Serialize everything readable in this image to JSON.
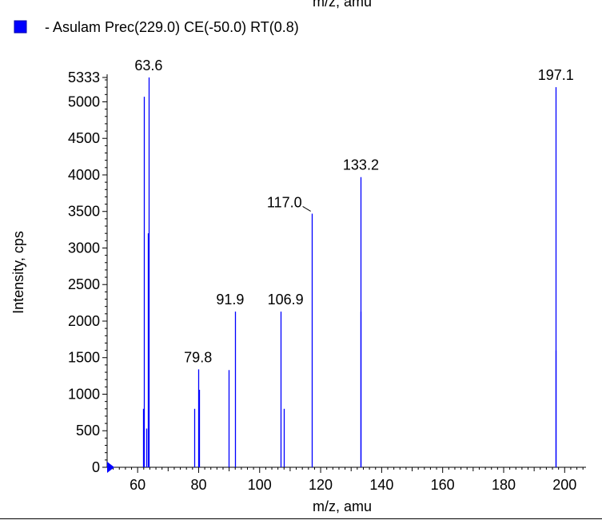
{
  "chart_data": {
    "type": "bar",
    "xlabel": "m/z, amu",
    "ylabel": "Intensity, cps",
    "xlim": [
      50,
      207
    ],
    "ylim": [
      0,
      5333
    ],
    "xticks": [
      60,
      80,
      100,
      120,
      140,
      160,
      180,
      200
    ],
    "yticks": [
      0,
      500,
      1000,
      1500,
      2000,
      2500,
      3000,
      3500,
      4000,
      4500,
      5000,
      5333
    ],
    "grid": false,
    "legend_position": "top-left",
    "colors": {
      "series": "#0000ff",
      "axis": "#000000"
    },
    "series": [
      {
        "name": "- Asulam Prec(229.0) CE(-50.0) RT(0.8)",
        "x": [
          61.8,
          62.0,
          62.9,
          63.3,
          63.6,
          78.7,
          79.8,
          80.1,
          89.9,
          91.9,
          106.9,
          107.9,
          117.0,
          133.1,
          133.2,
          197.0,
          197.1
        ],
        "values": [
          800,
          5070,
          530,
          3200,
          5333,
          800,
          1340,
          1060,
          1330,
          2130,
          2130,
          800,
          3470,
          2130,
          3970,
          1600,
          5200
        ]
      }
    ],
    "peak_labels": [
      {
        "x": 63.6,
        "y": 5333,
        "text": "63.6"
      },
      {
        "x": 79.8,
        "y": 1340,
        "text": "79.8"
      },
      {
        "x": 91.9,
        "y": 2130,
        "text": "91.9"
      },
      {
        "x": 106.9,
        "y": 2130,
        "text": "106.9"
      },
      {
        "x": 117.0,
        "y": 3470,
        "text": "117.0"
      },
      {
        "x": 133.2,
        "y": 3970,
        "text": "133.2"
      },
      {
        "x": 197.1,
        "y": 5200,
        "text": "197.1"
      }
    ]
  }
}
